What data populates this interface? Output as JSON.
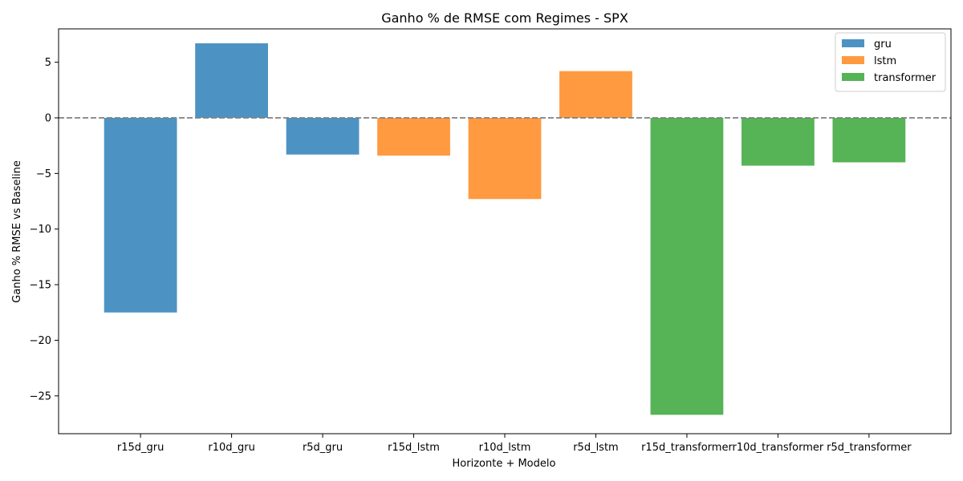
{
  "chart_data": {
    "type": "bar",
    "title": "Ganho % de RMSE com Regimes - SPX",
    "xlabel": "Horizonte + Modelo",
    "ylabel": "Ganho % RMSE vs Baseline",
    "categories": [
      "r15d_gru",
      "r10d_gru",
      "r5d_gru",
      "r15d_lstm",
      "r10d_lstm",
      "r5d_lstm",
      "r15d_transformer",
      "r10d_transformer",
      "r5d_transformer"
    ],
    "values": [
      -17.5,
      6.7,
      -3.3,
      -3.4,
      -7.3,
      4.2,
      -26.7,
      -4.3,
      -4.0
    ],
    "bar_series": [
      "gru",
      "gru",
      "gru",
      "lstm",
      "lstm",
      "lstm",
      "transformer",
      "transformer",
      "transformer"
    ],
    "series": [
      {
        "name": "gru",
        "color": "#4c93c4"
      },
      {
        "name": "lstm",
        "color": "#ff9a40"
      },
      {
        "name": "transformer",
        "color": "#56b356"
      }
    ],
    "ylim": [
      -28.4,
      8.0
    ],
    "yticks": [
      5,
      0,
      -5,
      -10,
      -15,
      -20,
      -25
    ],
    "ytick_labels": [
      "5",
      "0",
      "−5",
      "−10",
      "−15",
      "−20",
      "−25"
    ],
    "reference_line": 0,
    "grid": false,
    "legend_position": "top-right"
  }
}
